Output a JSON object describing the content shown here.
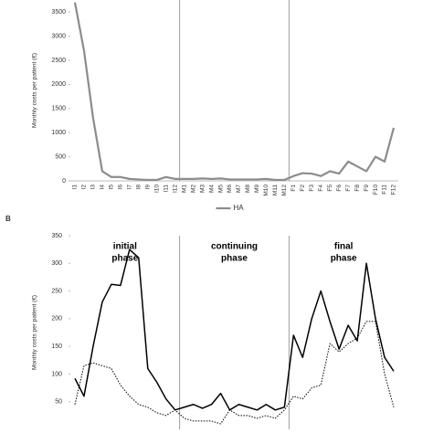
{
  "chart_data": [
    {
      "type": "line",
      "y_label": "Monthly costs per patient (€)",
      "categories": [
        "I1",
        "I2",
        "I3",
        "I4",
        "I5",
        "I6",
        "I7",
        "I8",
        "I9",
        "I10",
        "I11",
        "I12",
        "M1",
        "M2",
        "M3",
        "M4",
        "M5",
        "M6",
        "M7",
        "M8",
        "M9",
        "M10",
        "M11",
        "M12",
        "F1",
        "F2",
        "F3",
        "F4",
        "F5",
        "F6",
        "F7",
        "F8",
        "F9",
        "F10",
        "F11",
        "F12"
      ],
      "series": [
        {
          "name": "HA",
          "color": "#8c8c8c",
          "values": [
            3700,
            2700,
            1300,
            200,
            80,
            80,
            40,
            30,
            20,
            20,
            80,
            40,
            40,
            40,
            50,
            40,
            50,
            30,
            30,
            30,
            30,
            40,
            20,
            20,
            100,
            160,
            150,
            100,
            200,
            150,
            400,
            300,
            200,
            500,
            400,
            1100
          ]
        }
      ],
      "ylim": [
        0,
        3750
      ],
      "yticks": [
        0,
        500,
        1000,
        1500,
        2000,
        2500,
        3000,
        3500
      ]
    },
    {
      "type": "line",
      "panel_label": "B",
      "y_label": "Monthly costs per patient (€)",
      "annotations": [
        [
          "initial",
          "phase"
        ],
        [
          "continuing",
          "phase"
        ],
        [
          "final",
          "phase"
        ]
      ],
      "categories": [
        null,
        null,
        null,
        null,
        null,
        null,
        null,
        null,
        null,
        null,
        null,
        null,
        null,
        null,
        null,
        null,
        null,
        null,
        null,
        null,
        null,
        null,
        null,
        null,
        null,
        null,
        null,
        null,
        null,
        null,
        null,
        null,
        null,
        null,
        null,
        null
      ],
      "series": [
        {
          "color": "#000000",
          "dash": "solid",
          "values": [
            92,
            60,
            150,
            230,
            262,
            260,
            325,
            310,
            110,
            85,
            55,
            35,
            40,
            45,
            38,
            45,
            65,
            35,
            45,
            40,
            35,
            45,
            35,
            40,
            170,
            130,
            200,
            250,
            195,
            145,
            188,
            160,
            300,
            200,
            130,
            105
          ]
        },
        {
          "color": "#000000",
          "dash": "dotted",
          "values": [
            45,
            115,
            120,
            115,
            110,
            80,
            60,
            45,
            40,
            30,
            25,
            35,
            20,
            15,
            15,
            15,
            10,
            35,
            25,
            25,
            20,
            25,
            20,
            35,
            60,
            55,
            75,
            80,
            155,
            140,
            155,
            165,
            195,
            195,
            100,
            40
          ]
        }
      ],
      "ylim": [
        0,
        350
      ],
      "yticks": [
        50,
        100,
        150,
        200,
        250,
        300,
        350
      ]
    }
  ]
}
